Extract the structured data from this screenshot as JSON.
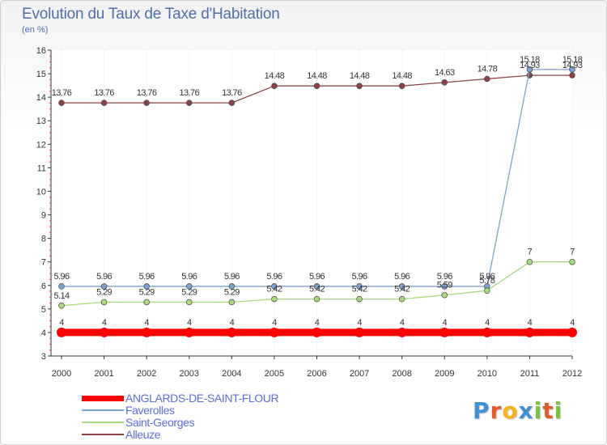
{
  "header": {
    "title": "Evolution du Taux de Taxe d'Habitation",
    "subtitle": "(en %)"
  },
  "chart_data": {
    "type": "line",
    "title": "Evolution du Taux de Taxe d'Habitation",
    "ylabel": "(en %)",
    "xlabel": "",
    "x": [
      "2000",
      "2001",
      "2002",
      "2003",
      "2004",
      "2005",
      "2006",
      "2007",
      "2008",
      "2009",
      "2010",
      "2011",
      "2012"
    ],
    "ylim": [
      3,
      16
    ],
    "yticks": [
      3,
      4,
      5,
      6,
      7,
      8,
      9,
      10,
      11,
      12,
      13,
      14,
      15,
      16
    ],
    "legend_position": "bottom-left",
    "series": [
      {
        "name": "ANGLARDS-DE-SAINT-FLOUR",
        "color": "#ff0000",
        "values": [
          4,
          4,
          4,
          4,
          4,
          4,
          4,
          4,
          4,
          4,
          4,
          4,
          4
        ],
        "labels": [
          "4",
          "4",
          "4",
          "4",
          "4",
          "4",
          "4",
          "4",
          "4",
          "4",
          "4",
          "4",
          "4"
        ]
      },
      {
        "name": "Faverolles",
        "color": "#7aa3d1",
        "values": [
          5.96,
          5.96,
          5.96,
          5.96,
          5.96,
          5.96,
          5.96,
          5.96,
          5.96,
          5.96,
          5.96,
          15.18,
          15.18
        ],
        "labels": [
          "5.96",
          "5.96",
          "5.96",
          "5.96",
          "5.96",
          "5.96",
          "5.96",
          "5.96",
          "5.96",
          "5.96",
          "5.96",
          "15.18",
          "15.18"
        ]
      },
      {
        "name": "Saint-Georges",
        "color": "#a6db7e",
        "values": [
          5.14,
          5.29,
          5.29,
          5.29,
          5.29,
          5.42,
          5.42,
          5.42,
          5.42,
          5.59,
          5.78,
          7,
          7
        ],
        "labels": [
          "5.14",
          "5.29",
          "5.29",
          "5.29",
          "5.29",
          "5.42",
          "5.42",
          "5.42",
          "5.42",
          "5.59",
          "5.78",
          "7",
          "7"
        ]
      },
      {
        "name": "Alleuze",
        "color": "#8b4343",
        "values": [
          13.76,
          13.76,
          13.76,
          13.76,
          13.76,
          14.48,
          14.48,
          14.48,
          14.48,
          14.63,
          14.78,
          14.93,
          14.93
        ],
        "labels": [
          "13.76",
          "13.76",
          "13.76",
          "13.76",
          "13.76",
          "14.48",
          "14.48",
          "14.48",
          "14.48",
          "14.63",
          "14.78",
          "14.93",
          "14.93"
        ]
      }
    ]
  },
  "logo": {
    "letters": [
      {
        "ch": "P",
        "color": "#3f8fd6"
      },
      {
        "ch": "r",
        "color": "#e25b2c"
      },
      {
        "ch": "o",
        "color": "#f2b21c"
      },
      {
        "ch": "x",
        "color": "#3f8fd6"
      },
      {
        "ch": "i",
        "color": "#7cc242"
      },
      {
        "ch": "t",
        "color": "#e25b2c"
      },
      {
        "ch": "i",
        "color": "#7cc242"
      }
    ]
  }
}
